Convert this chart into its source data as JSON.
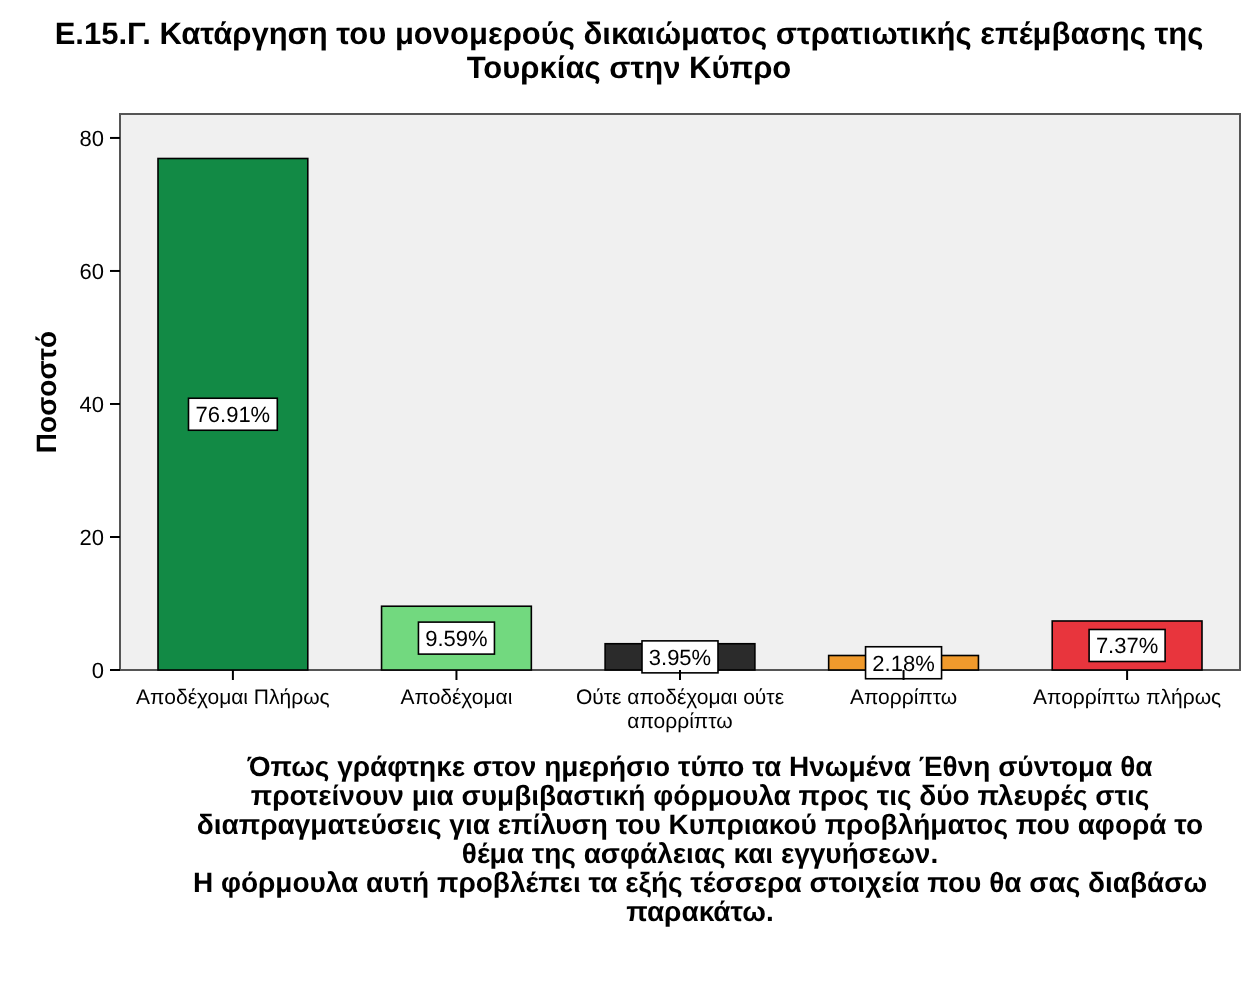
{
  "chart_data": {
    "type": "bar",
    "title": "Ε.15.Γ. Κατάργηση του μονομερούς δικαιώματος στρατιωτικής επέμβασης της\nΤουρκίας στην Κύπρο",
    "categories": [
      "Αποδέχομαι Πλήρως",
      "Αποδέχομαι",
      "Ούτε αποδέχομαι ούτε απορρίπτω",
      "Απορρίπτω",
      "Απορρίπτω πλήρως"
    ],
    "values": [
      76.91,
      9.59,
      3.95,
      2.18,
      7.37
    ],
    "colors": [
      "#128a45",
      "#72d97f",
      "#2b2b2b",
      "#f09a2c",
      "#e8353d"
    ],
    "value_labels": [
      "76.91%",
      "9.59%",
      "3.95%",
      "2.18%",
      "7.37%"
    ],
    "ylabel": "Ποσοστό",
    "xlabel": "Όπως γράφτηκε στον ημερήσιο τύπο τα Ηνωμένα Έθνη σύντομα θα\nπροτείνουν μια συμβιβαστική φόρμουλα προς τις δύο πλευρές στις\nδιαπραγματεύσεις για επίλυση του Κυπριακού προβλήματος που αφορά το\nθέμα της ασφάλειας και εγγυήσεων.\nΗ φόρμουλα αυτή προβλέπει τα εξής τέσσερα στοιχεία που θα σας διαβάσω\nπαρακάτω.",
    "ylim": [
      0,
      83.6
    ],
    "yticks": [
      0,
      20,
      40,
      60,
      80
    ],
    "grid": false
  }
}
